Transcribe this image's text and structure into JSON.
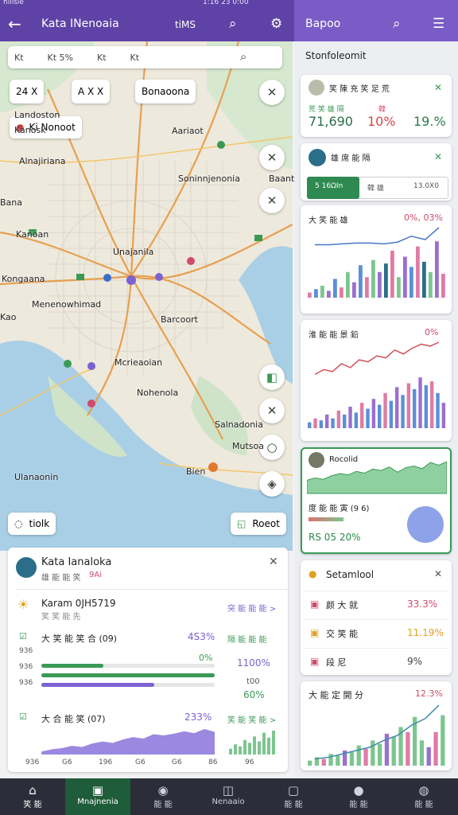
{
  "status_bar": {
    "left": "hilisie",
    "center": "1:16 23 0:00"
  },
  "header": {
    "title": "Kata INenoaia",
    "subtitle": "tiMS",
    "right_title": "Bapoo"
  },
  "search_bar": [
    "Kt",
    "Kt 5%",
    "Kt",
    "Kt"
  ],
  "chips": [
    "24 X",
    "A X X",
    "Bonaoona"
  ],
  "pin_chip": "Ki Nonoot",
  "map_labels": [
    "Landoston",
    "Kanosk",
    "Aariaot",
    "Alnajiriana",
    "Soninnjenonia",
    "Kanoan",
    "Unajanila",
    "Kongaana",
    "Menenowhimad",
    "Barcoort",
    "Mcrieaoian",
    "Nohenola",
    "Salnadonia",
    "Ulanaonin",
    "Mutsoa",
    "Bien",
    "Bana",
    "Baant",
    "Kao"
  ],
  "map_buttons": [
    "tiolk",
    "Roeot"
  ],
  "info_card": {
    "title": "Kata Ianaloka",
    "subtitle": "雄 能 能 笑",
    "subtitle_tag": "9Ai",
    "row": {
      "title": "Karam 0JH5719",
      "subtitle": "笑 笑 能 先",
      "link": "突 能 能 能 >"
    },
    "section1": {
      "title": "大 笑 能 笑 合 (09)",
      "value": "4S3%",
      "side_title": "隔 能 能 能",
      "small": "0%",
      "side_value": "1100%",
      "side_small": "t00",
      "side_value2": "60%",
      "row_labels": [
        "936",
        "936",
        "936"
      ],
      "progress": [
        {
          "value": 36,
          "color": "#3a9a55"
        },
        {
          "value": 100,
          "color": "#3a9a55"
        },
        {
          "value": 65,
          "color": "#7b61d1"
        }
      ]
    },
    "section2": {
      "title": "大 合 能 笑 (07)",
      "value": "233%",
      "side_title": "笑 能 笑 能 >",
      "area": [
        10,
        18,
        22,
        30,
        26,
        38,
        45,
        40,
        52,
        60,
        55,
        70,
        66,
        72,
        80,
        74,
        88,
        78
      ],
      "bars": [
        20,
        35,
        28,
        50,
        40,
        62,
        45,
        75,
        58,
        82
      ],
      "x_labels": [
        "936",
        "G6",
        "196",
        "G6",
        "G6",
        "86",
        "96"
      ]
    }
  },
  "side": {
    "title": "Stonfoleomit",
    "cards": [
      {
        "title": "笑 陳 充 笑 足 荒",
        "labels": [
          "荒 笑 雄 隔",
          "韓"
        ],
        "stats": [
          "71,690",
          "10%",
          "19.%"
        ]
      },
      {
        "title": "雄 席 能 隔",
        "tabs": [
          "5 16ΩIn",
          "韓 雄",
          "13.0X0"
        ]
      },
      {
        "title": "大 笑 能 雄",
        "value": "0%, 03%",
        "chart": {
          "line": [
            62,
            62,
            63,
            64,
            64,
            63,
            65,
            72,
            68,
            82
          ],
          "bars": [
            6,
            10,
            14,
            8,
            22,
            12,
            30,
            18,
            38,
            24,
            44,
            30,
            40,
            55,
            24,
            48,
            36,
            60,
            42,
            30,
            66,
            28
          ],
          "bar_colors": [
            "#e07ba5",
            "#5a8fd8",
            "#7cc68f",
            "#9b6fd0",
            "#5a8fd8",
            "#e07ba5",
            "#7cc68f",
            "#9b6fd0",
            "#5a8fd8",
            "#e07ba5",
            "#7cc68f",
            "#9b6fd0",
            "#2a6e8a",
            "#e07ba5",
            "#7cc68f",
            "#9b6fd0",
            "#5a8fd8",
            "#e07ba5",
            "#2a6e8a",
            "#7cc68f",
            "#9b6fd0",
            "#e07ba5"
          ],
          "line_color": "#4a78c8"
        }
      },
      {
        "title": "淮 能 能 景 鉛",
        "value": "0%",
        "chart": {
          "line": [
            55,
            60,
            58,
            66,
            62,
            70,
            68,
            74,
            72,
            80,
            76,
            82,
            86,
            84,
            88
          ],
          "bars": [
            6,
            10,
            8,
            14,
            10,
            18,
            14,
            22,
            16,
            26,
            20,
            30,
            24,
            36,
            28,
            42,
            34,
            46,
            40,
            52,
            44,
            48,
            36,
            26
          ],
          "bar_colors": [
            "#5a8fd8",
            "#e07ba5",
            "#5a8fd8",
            "#9b6fd0",
            "#5a8fd8",
            "#e07ba5",
            "#5a8fd8",
            "#9b6fd0",
            "#5a8fd8",
            "#e07ba5",
            "#5a8fd8",
            "#9b6fd0",
            "#5a8fd8",
            "#e07ba5",
            "#5a8fd8",
            "#9b6fd0",
            "#5a8fd8",
            "#e07ba5",
            "#5a8fd8",
            "#9b6fd0",
            "#5a8fd8",
            "#e07ba5",
            "#5a8fd8",
            "#9b6fd0"
          ],
          "line_color": "#d0505a"
        }
      },
      {
        "title": "Rocolid",
        "subtitle": "度 能 能 寅 (9 6)",
        "value": "RS 05 20%",
        "area": [
          30,
          35,
          32,
          40,
          45,
          42,
          50,
          46,
          55,
          52,
          60,
          48,
          58,
          62,
          56,
          70,
          64,
          72
        ]
      },
      {
        "title": "Setamlool",
        "rows": [
          [
            "颜 大 就",
            "33.3%"
          ],
          [
            "交 笑 能",
            "11.19%"
          ],
          [
            "段 尼",
            "9%"
          ]
        ]
      },
      {
        "title": "大 能 定 開 分",
        "value": "12.3%",
        "chart": {
          "line": [
            8,
            10,
            14,
            18,
            22,
            30,
            36,
            48,
            56,
            72
          ],
          "bars": [
            6,
            10,
            8,
            14,
            12,
            18,
            16,
            24,
            20,
            30,
            26,
            38,
            34,
            46,
            40,
            58,
            30,
            22,
            40,
            60
          ],
          "bar_colors": [
            "#7cc68f",
            "#7cc68f",
            "#e07ba5",
            "#7cc68f",
            "#7cc68f",
            "#9b6fd0",
            "#7cc68f",
            "#7cc68f",
            "#e07ba5",
            "#7cc68f",
            "#7cc68f",
            "#9b6fd0",
            "#7cc68f",
            "#7cc68f",
            "#e07ba5",
            "#7cc68f",
            "#7cc68f",
            "#9b6fd0",
            "#e07ba5",
            "#7cc68f"
          ],
          "line_color": "#3a8aa8"
        }
      }
    ]
  },
  "nav": [
    "笑 能",
    "Mnajnenia",
    "能 能",
    "Nenaaio",
    "能 能",
    "能 能",
    "能 能"
  ]
}
